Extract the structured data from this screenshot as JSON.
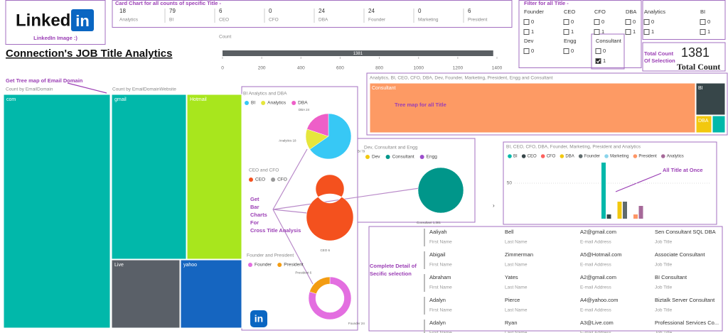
{
  "header": {
    "logo_text": "Linked",
    "logo_in": "in",
    "logo_caption": "LinkedIn Image :)",
    "title": "Connection's JOB Title Analytics"
  },
  "card_chart": {
    "title": "Card Chart for all counts of specific Title -",
    "cards": [
      {
        "value": 18,
        "label": "Analytics"
      },
      {
        "value": 79,
        "label": "BI"
      },
      {
        "value": 6,
        "label": "CEO"
      },
      {
        "value": 0,
        "label": "CFO"
      },
      {
        "value": 24,
        "label": "DBA"
      },
      {
        "value": 24,
        "label": "Founder"
      },
      {
        "value": 0,
        "label": "Marketing"
      },
      {
        "value": 6,
        "label": "President"
      }
    ]
  },
  "count_bar": {
    "type": "bar",
    "axis_label": "Count",
    "value": 1381,
    "value_label": "1381",
    "color": "#5a5f63",
    "xlim": [
      0,
      1400
    ],
    "xticks": [
      0,
      200,
      400,
      600,
      800,
      1000,
      1200,
      1400
    ]
  },
  "filter": {
    "title": "Filter for all Title -",
    "groups": [
      {
        "label": "Founder",
        "options": [
          {
            "label": "0",
            "checked": false
          },
          {
            "label": "1",
            "checked": false
          }
        ]
      },
      {
        "label": "CEO",
        "options": [
          {
            "label": "0",
            "checked": false
          },
          {
            "label": "1",
            "checked": false
          }
        ]
      },
      {
        "label": "CFO",
        "options": [
          {
            "label": "0",
            "checked": false
          },
          {
            "label": "1",
            "checked": false
          }
        ]
      },
      {
        "label": "DBA",
        "options": [
          {
            "label": "0",
            "checked": false
          },
          {
            "label": "1",
            "checked": false
          }
        ]
      },
      {
        "label": "Analytics",
        "options": [
          {
            "label": "0",
            "checked": false
          },
          {
            "label": "1",
            "checked": false
          }
        ]
      },
      {
        "label": "BI",
        "options": [
          {
            "label": "0",
            "checked": false
          },
          {
            "label": "1",
            "checked": false
          }
        ]
      },
      {
        "label": "Dev",
        "options": [
          {
            "label": "0",
            "checked": false
          }
        ]
      },
      {
        "label": "Engg",
        "options": [
          {
            "label": "0",
            "checked": false
          }
        ]
      },
      {
        "label": "Consultant",
        "options": [
          {
            "label": "0",
            "checked": false
          },
          {
            "label": "1",
            "checked": true
          }
        ]
      }
    ]
  },
  "total": {
    "label_line1": "Total Count",
    "label_line2": "Of Selection",
    "value": "1381",
    "caption": "Total Count"
  },
  "email_treemap": {
    "annotation": "Get Tree map of Email Domain",
    "title": "Count by EmailDomain",
    "title2": "Count by EmailDomainWebsite",
    "cells": [
      {
        "label": "com",
        "color": "#01b8aa"
      },
      {
        "label": "gmail",
        "color": "#01b8aa"
      },
      {
        "label": "Hotmail",
        "color": "#a8e61d"
      },
      {
        "label": "Live",
        "color": "#5a6068"
      },
      {
        "label": "yahoo",
        "color": "#1565c0"
      }
    ]
  },
  "pies": [
    {
      "type": "pie",
      "title": "BI Analytics and DBA",
      "categories": [
        "BI",
        "Analytics",
        "DBA"
      ],
      "colors": [
        "#37c8f5",
        "#e6e63c",
        "#ee5fc8"
      ],
      "values": [
        79,
        18,
        24
      ],
      "value_labels": [
        "BI 79",
        "Analytics 18",
        "DBA 24"
      ]
    },
    {
      "type": "donut",
      "title": "CEO and CFO",
      "categories": [
        "CEO",
        "CFO"
      ],
      "colors": [
        "#f4511e",
        "#999999"
      ],
      "values": [
        6,
        0
      ],
      "value_labels": [
        "CEO 6",
        null
      ]
    },
    {
      "type": "donut",
      "title": "Founder and President",
      "categories": [
        "Founder",
        "President"
      ],
      "colors": [
        "#e36ee0",
        "#f39c12"
      ],
      "values": [
        24,
        6
      ],
      "value_labels": [
        "Founder 24",
        "President 6"
      ]
    },
    {
      "type": "pie",
      "title": "Dev, Consultant and Engg",
      "categories": [
        "Dev",
        "Consultant",
        "Engg"
      ],
      "colors": [
        "#f2c80f",
        "#00968a",
        "#9c4dcc"
      ],
      "values": [
        0,
        1381,
        0
      ],
      "value_labels": [
        null,
        "Consultant 1,381",
        null
      ]
    }
  ],
  "bar_annotation": [
    "Get",
    "Bar",
    "Charts",
    "For",
    "Cross Title Analysis"
  ],
  "title_treemap": {
    "title": "Analytics, BI, CEO, CFO, DBA, Dev, Founder, Marketing, President, Engg and Consultant",
    "annotation": "Tree map for all Title",
    "cells": [
      {
        "label": "Consultant",
        "color": "#fd9a64"
      },
      {
        "label": "BI",
        "color": "#374649"
      },
      {
        "label": "DBA",
        "color": "#f2c80f"
      },
      {
        "label": null,
        "color": "#01b8aa"
      }
    ]
  },
  "bar_chart": {
    "type": "bar",
    "title": "BI, CEO, CFO, DBA, Founder, Marketing, President and Analytics",
    "annotation": "All Title at Once",
    "categories": [
      "BI",
      "CEO",
      "CFO",
      "DBA",
      "Founder",
      "Marketing",
      "President",
      "Analytics"
    ],
    "colors": [
      "#01b8aa",
      "#374649",
      "#fd625e",
      "#f2c80f",
      "#5f6b6d",
      "#8ad4eb",
      "#fe9666",
      "#a66999"
    ],
    "values": [
      79,
      6,
      0,
      24,
      24,
      0,
      6,
      18
    ],
    "ylim": [
      0,
      85
    ],
    "yticks": [
      50
    ],
    "grid": true
  },
  "table": {
    "annotation": [
      "Complete Detail of",
      "Secific selection"
    ],
    "columns": [
      "First Name",
      "Last Name",
      "E-mail Address",
      "Job Title"
    ],
    "rows": [
      [
        "Aaliyah",
        "Bell",
        "A2@gmail.com",
        "Sen Consultant SQL DBA"
      ],
      [
        "Abigail",
        "Zimmerman",
        "A5@Hotmail.com",
        "Associate Consultant"
      ],
      [
        "Abraham",
        "Yates",
        "A2@gmail.com",
        "BI Consultant"
      ],
      [
        "Adalyn",
        "Pierce",
        "A4@yahoo.com",
        "Biztalk Server Consultant"
      ],
      [
        "Adalyn",
        "Ryan",
        "A3@Live.com",
        "Professional Services Co..."
      ]
    ]
  }
}
